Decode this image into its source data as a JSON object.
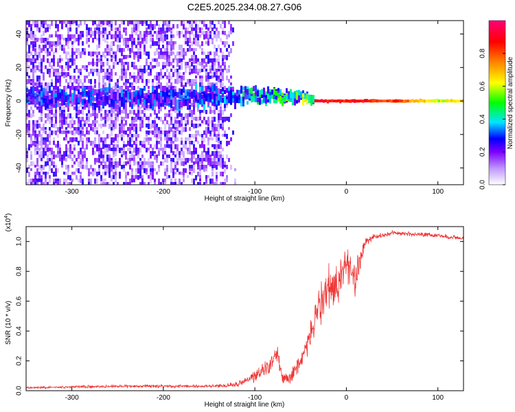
{
  "figure_title": "C2E5.2025.234.08.27.G06",
  "chart_data": [
    {
      "type": "heatmap",
      "title": "C2E5.2025.234.08.27.G06",
      "xlabel": "Height of straight line (km)",
      "ylabel": "Frequency (Hz)",
      "xlim": [
        -350,
        128
      ],
      "ylim": [
        -50,
        48
      ],
      "xticks": [
        -300,
        -200,
        -100,
        0,
        100
      ],
      "yticks": [
        -40,
        -20,
        0,
        20,
        40
      ],
      "xtick_labels": [
        "-300",
        "-200",
        "-100",
        "0",
        "100"
      ],
      "ytick_labels": [
        "-40",
        "-20",
        "0",
        "20",
        "40"
      ],
      "colorbar": {
        "label": "Normalized spectral amplitude",
        "range": [
          0.0,
          1.0
        ],
        "ticks": [
          0.0,
          0.2,
          0.4,
          0.6,
          0.8
        ],
        "tick_labels": [
          "0.0",
          "0.2",
          "0.4",
          "0.6",
          "0.8"
        ],
        "colors": [
          "#ffffff",
          "#7a00ff",
          "#0000ff",
          "#00e5ff",
          "#00ff00",
          "#ffff00",
          "#ff7f00",
          "#ff0000",
          "#ff0077"
        ]
      },
      "band": {
        "description_points_x": [
          -300,
          -200,
          -130,
          -100,
          -60,
          -40,
          -35,
          0,
          50,
          100,
          128
        ],
        "center_hz": [
          2,
          2,
          2,
          3,
          3,
          1,
          0,
          0,
          0,
          0,
          0
        ],
        "halfwidth_hz": [
          8,
          8,
          8,
          7,
          5,
          3,
          1,
          1,
          0.8,
          1,
          0.8
        ],
        "peak_amplitude": [
          0.3,
          0.3,
          0.35,
          0.45,
          0.5,
          0.55,
          0.9,
          0.9,
          0.85,
          0.6,
          0.7
        ]
      }
    },
    {
      "type": "line",
      "xlabel": "Height of straight line (km)",
      "ylabel": "SNR (10 * v/v)",
      "exponent_label": "(x10",
      "exponent_power": "4",
      "exponent_close": ")",
      "xlim": [
        -350,
        128
      ],
      "ylim": [
        0.0,
        1.1
      ],
      "xticks": [
        -300,
        -200,
        -100,
        0,
        100
      ],
      "yticks": [
        0.0,
        0.2,
        0.4,
        0.6,
        0.8,
        1.0
      ],
      "xtick_labels": [
        "-300",
        "-200",
        "-100",
        "0",
        "100"
      ],
      "ytick_labels": [
        "0.0",
        "0.2",
        "0.4",
        "0.6",
        "0.8",
        "1.0"
      ],
      "series": [
        {
          "name": "SNR",
          "color": "#ee3333",
          "x": [
            -350,
            -300,
            -250,
            -200,
            -150,
            -130,
            -120,
            -110,
            -100,
            -90,
            -80,
            -75,
            -70,
            -60,
            -50,
            -40,
            -30,
            -20,
            -10,
            0,
            10,
            20,
            30,
            50,
            70,
            100,
            128
          ],
          "y": [
            0.02,
            0.025,
            0.03,
            0.03,
            0.03,
            0.035,
            0.045,
            0.07,
            0.1,
            0.15,
            0.2,
            0.24,
            0.08,
            0.1,
            0.2,
            0.35,
            0.55,
            0.65,
            0.7,
            0.85,
            0.75,
            1.0,
            1.03,
            1.06,
            1.05,
            1.04,
            1.02
          ],
          "noise": [
            0.01,
            0.012,
            0.015,
            0.015,
            0.015,
            0.02,
            0.03,
            0.04,
            0.06,
            0.08,
            0.1,
            0.12,
            0.06,
            0.06,
            0.1,
            0.14,
            0.2,
            0.24,
            0.22,
            0.2,
            0.18,
            0.06,
            0.03,
            0.02,
            0.02,
            0.02,
            0.02
          ]
        }
      ]
    }
  ]
}
